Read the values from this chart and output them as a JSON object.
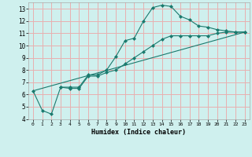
{
  "xlabel": "Humidex (Indice chaleur)",
  "bg_color": "#cff0ee",
  "grid_color": "#e8b0b0",
  "line_color": "#1a7a6e",
  "xlim": [
    -0.5,
    23.5
  ],
  "ylim": [
    4,
    13.5
  ],
  "xticks": [
    0,
    1,
    2,
    3,
    4,
    5,
    6,
    7,
    8,
    9,
    10,
    11,
    12,
    13,
    14,
    15,
    16,
    17,
    18,
    19,
    20,
    21,
    22,
    23
  ],
  "yticks": [
    4,
    5,
    6,
    7,
    8,
    9,
    10,
    11,
    12,
    13
  ],
  "line1_x": [
    0,
    1,
    2,
    3,
    4,
    5,
    6,
    7,
    8,
    9,
    10,
    11,
    12,
    13,
    14,
    15,
    16,
    17,
    18,
    19,
    20,
    21,
    22,
    23
  ],
  "line1_y": [
    6.3,
    4.7,
    4.4,
    6.6,
    6.6,
    6.6,
    7.6,
    7.6,
    8.0,
    9.1,
    10.4,
    10.6,
    12.0,
    13.1,
    13.3,
    13.2,
    12.4,
    12.1,
    11.6,
    11.5,
    11.3,
    11.2,
    11.1,
    11.1
  ],
  "line2_x": [
    3,
    4,
    5,
    6,
    7,
    8,
    9,
    10,
    11,
    12,
    13,
    14,
    15,
    16,
    17,
    18,
    19,
    20,
    21,
    22,
    23
  ],
  "line2_y": [
    6.6,
    6.5,
    6.5,
    7.5,
    7.5,
    7.8,
    8.0,
    8.5,
    9.0,
    9.5,
    10.0,
    10.5,
    10.8,
    10.8,
    10.8,
    10.8,
    10.8,
    11.0,
    11.1,
    11.1,
    11.1
  ],
  "line3_x": [
    0,
    23
  ],
  "line3_y": [
    6.3,
    11.1
  ]
}
